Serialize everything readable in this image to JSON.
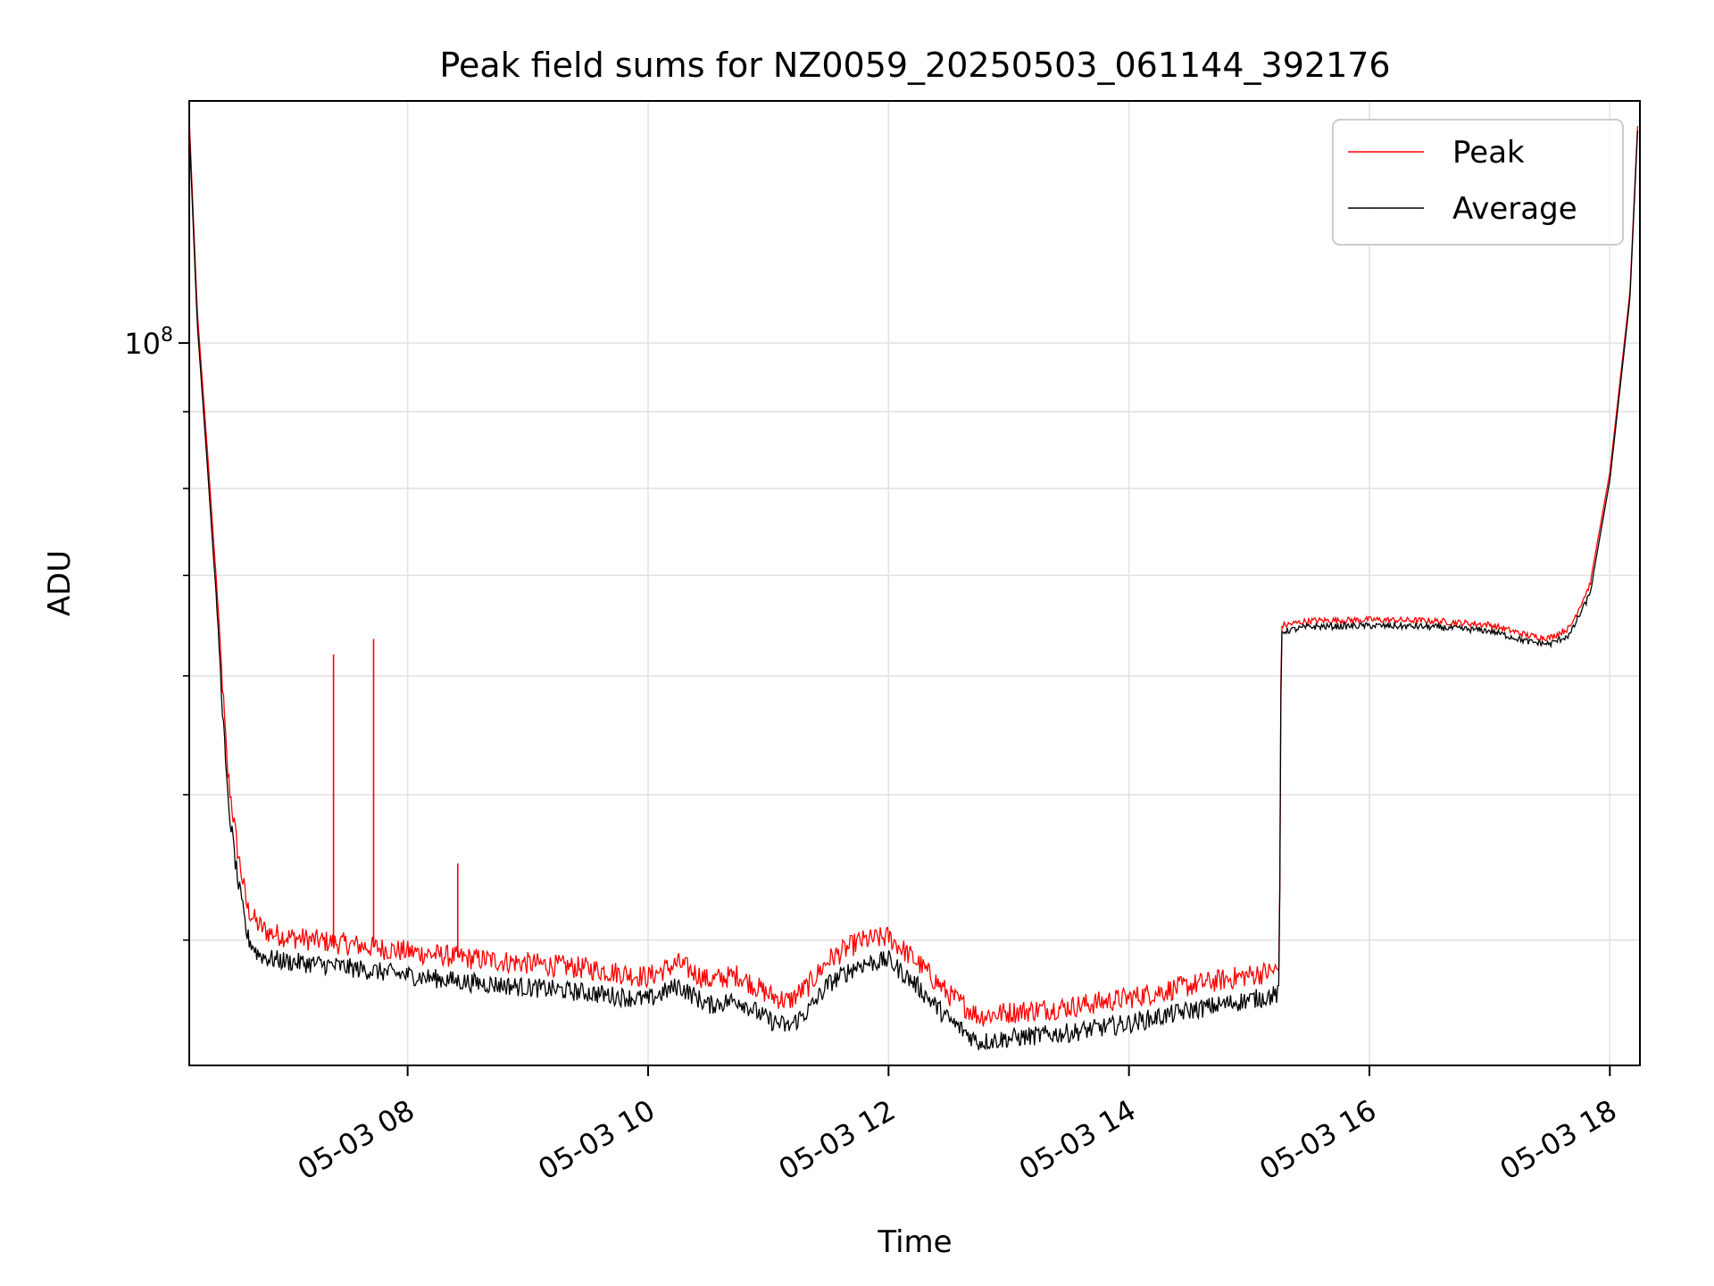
{
  "chart_data": {
    "type": "line",
    "title": "Peak field sums for NZ0059_20250503_061144_392176",
    "xlabel": "Time",
    "ylabel": "ADU",
    "yscale": "log",
    "xlim": [
      "05-03 06:11",
      "05-03 18:15"
    ],
    "ylim": [
      33000000,
      145000000
    ],
    "grid": true,
    "legend_position": "top-right",
    "x_ticks": [
      "05-03 08",
      "05-03 10",
      "05-03 12",
      "05-03 14",
      "05-03 16",
      "05-03 18"
    ],
    "y_ticks": [
      "10^8"
    ],
    "series": [
      {
        "name": "Peak",
        "color": "#ff0000",
        "x": [
          "05-03 06:11",
          "05-03 06:15",
          "05-03 06:20",
          "05-03 06:25",
          "05-03 06:30",
          "05-03 06:35",
          "05-03 06:40",
          "05-03 06:45",
          "05-03 06:50",
          "05-03 07:00",
          "05-03 07:20",
          "05-03 07:40",
          "05-03 08:00",
          "05-03 08:30",
          "05-03 09:00",
          "05-03 09:30",
          "05-03 10:00",
          "05-03 10:15",
          "05-03 10:30",
          "05-03 10:45",
          "05-03 11:00",
          "05-03 11:10",
          "05-03 11:20",
          "05-03 11:30",
          "05-03 11:45",
          "05-03 12:00",
          "05-03 12:15",
          "05-03 12:30",
          "05-03 12:45",
          "05-03 13:00",
          "05-03 13:30",
          "05-03 14:00",
          "05-03 14:30",
          "05-03 15:00",
          "05-03 15:15",
          "05-03 15:16",
          "05-03 15:30",
          "05-03 16:00",
          "05-03 16:30",
          "05-03 17:00",
          "05-03 17:20",
          "05-03 17:30",
          "05-03 17:40",
          "05-03 17:50",
          "05-03 18:00",
          "05-03 18:10",
          "05-03 18:14"
        ],
        "y": [
          141000000,
          105000000,
          85000000,
          68000000,
          52000000,
          46000000,
          42000000,
          41000000,
          40500000,
          40200000,
          39900000,
          39600000,
          39300000,
          38900000,
          38600000,
          38300000,
          37800000,
          38600000,
          37600000,
          37900000,
          36800000,
          36400000,
          37300000,
          38800000,
          39900000,
          40200000,
          38600000,
          36800000,
          35600000,
          35800000,
          36100000,
          36600000,
          37300000,
          37900000,
          38200000,
          64800000,
          65300000,
          65400000,
          65300000,
          64900000,
          63800000,
          63600000,
          64600000,
          69000000,
          82000000,
          108000000,
          141000000
        ],
        "spikes": [
          {
            "x": "05-03 07:23",
            "y": 62000000
          },
          {
            "x": "05-03 07:43",
            "y": 63500000
          },
          {
            "x": "05-03 08:25",
            "y": 45000000
          }
        ]
      },
      {
        "name": "Average",
        "color": "#000000",
        "x": [
          "05-03 06:11",
          "05-03 06:15",
          "05-03 06:20",
          "05-03 06:25",
          "05-03 06:30",
          "05-03 06:35",
          "05-03 06:40",
          "05-03 06:45",
          "05-03 06:50",
          "05-03 07:00",
          "05-03 07:20",
          "05-03 07:40",
          "05-03 08:00",
          "05-03 08:30",
          "05-03 09:00",
          "05-03 09:30",
          "05-03 10:00",
          "05-03 10:15",
          "05-03 10:30",
          "05-03 10:45",
          "05-03 11:00",
          "05-03 11:10",
          "05-03 11:20",
          "05-03 11:30",
          "05-03 11:45",
          "05-03 12:00",
          "05-03 12:15",
          "05-03 12:30",
          "05-03 12:45",
          "05-03 13:00",
          "05-03 13:30",
          "05-03 14:00",
          "05-03 14:30",
          "05-03 15:00",
          "05-03 15:15",
          "05-03 15:16",
          "05-03 15:30",
          "05-03 16:00",
          "05-03 16:30",
          "05-03 17:00",
          "05-03 17:20",
          "05-03 17:30",
          "05-03 17:40",
          "05-03 17:50",
          "05-03 18:00",
          "05-03 18:10",
          "05-03 18:14"
        ],
        "y": [
          139000000,
          103000000,
          83000000,
          66000000,
          50000000,
          44000000,
          40200000,
          39200000,
          38900000,
          38700000,
          38500000,
          38200000,
          37900000,
          37500000,
          37200000,
          36900000,
          36500000,
          37300000,
          36200000,
          36500000,
          35400000,
          35000000,
          35900000,
          37400000,
          38500000,
          38800000,
          37200000,
          35400000,
          34200000,
          34400000,
          34700000,
          35200000,
          35900000,
          36500000,
          36800000,
          64200000,
          64700000,
          64800000,
          64700000,
          64300000,
          63200000,
          63000000,
          63900000,
          68000000,
          81000000,
          107000000,
          140000000
        ]
      }
    ]
  }
}
